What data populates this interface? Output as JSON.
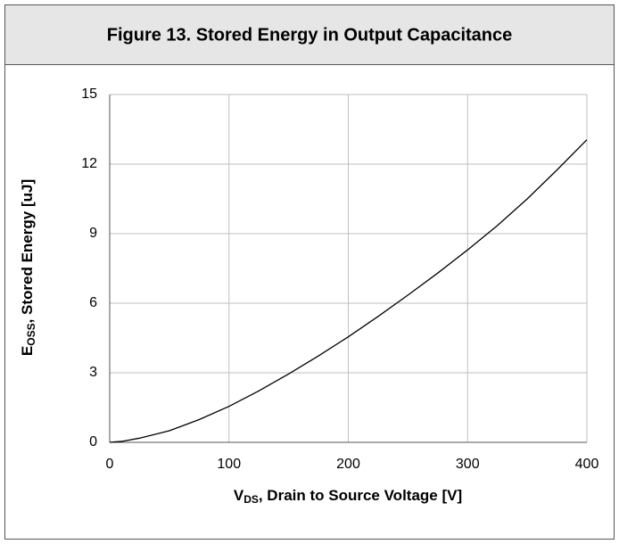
{
  "chart_data": {
    "type": "line",
    "title": "Figure 13. Stored Energy in Output Capacitance",
    "ylabel": {
      "main": "E",
      "sub": "OSS",
      "rest": ", Stored Energy  [uJ]"
    },
    "xlabel": {
      "main": "V",
      "sub": "DS",
      "rest": ", Drain to Source Voltage [V]"
    },
    "x": [
      0,
      10,
      25,
      50,
      75,
      100,
      125,
      150,
      175,
      200,
      225,
      250,
      275,
      300,
      325,
      350,
      375,
      400
    ],
    "series": [
      {
        "name": "Eoss",
        "color": "#000000",
        "values": [
          0,
          0.04,
          0.18,
          0.5,
          0.98,
          1.55,
          2.22,
          2.95,
          3.73,
          4.55,
          5.43,
          6.35,
          7.3,
          8.3,
          9.35,
          10.5,
          11.75,
          13.05
        ]
      }
    ],
    "xlim": [
      0,
      400
    ],
    "xticks": [
      0,
      100,
      200,
      300,
      400
    ],
    "ylim": [
      0,
      15
    ],
    "yticks": [
      0,
      3,
      6,
      9,
      12,
      15
    ],
    "grid": true
  }
}
